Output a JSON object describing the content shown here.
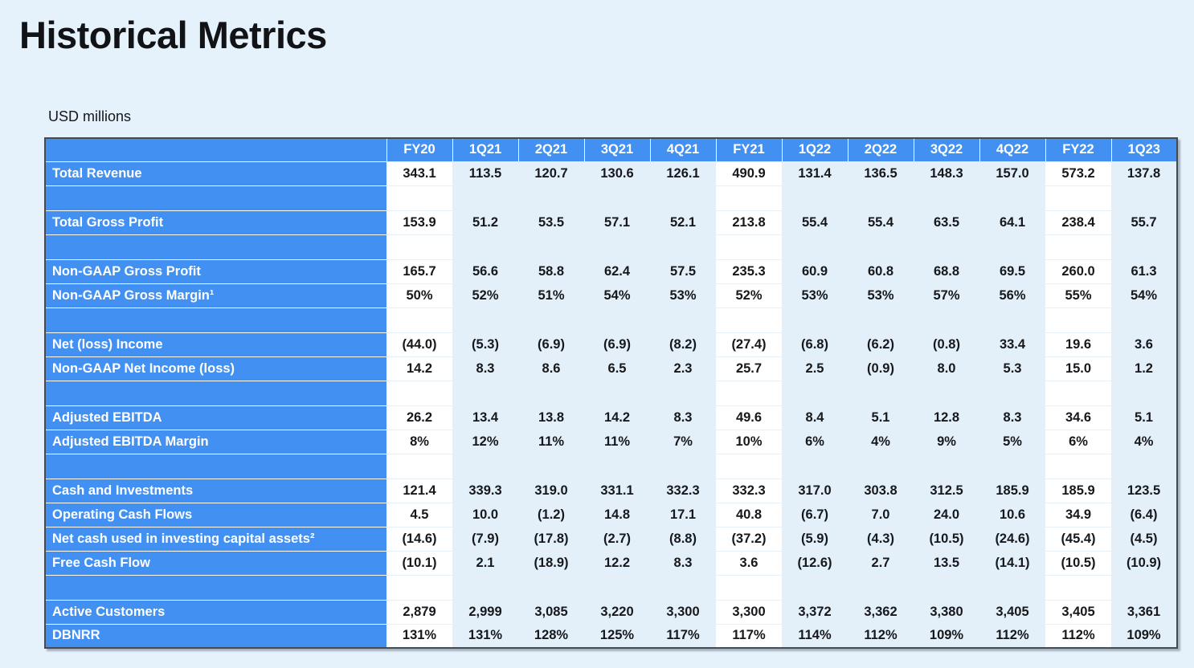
{
  "page": {
    "title": "Historical Metrics",
    "subtitle": "USD millions"
  },
  "colors": {
    "page_background": "#e6f2fb",
    "header_blue": "#4291f2",
    "column_tint": "#e3f0fa",
    "table_border": "#424c56",
    "value_text": "#17181b",
    "header_text": "#ffffff"
  },
  "table": {
    "columns": [
      {
        "label": "FY20",
        "tint": false
      },
      {
        "label": "1Q21",
        "tint": true
      },
      {
        "label": "2Q21",
        "tint": true
      },
      {
        "label": "3Q21",
        "tint": true
      },
      {
        "label": "4Q21",
        "tint": true
      },
      {
        "label": "FY21",
        "tint": false
      },
      {
        "label": "1Q22",
        "tint": true
      },
      {
        "label": "2Q22",
        "tint": true
      },
      {
        "label": "3Q22",
        "tint": true
      },
      {
        "label": "4Q22",
        "tint": true
      },
      {
        "label": "FY22",
        "tint": false
      },
      {
        "label": "1Q23",
        "tint": true
      }
    ],
    "rows": [
      {
        "label": "Total Revenue",
        "spacer_after": true,
        "values": [
          "343.1",
          "113.5",
          "120.7",
          "130.6",
          "126.1",
          "490.9",
          "131.4",
          "136.5",
          "148.3",
          "157.0",
          "573.2",
          "137.8"
        ]
      },
      {
        "label": "Total Gross Profit",
        "spacer_after": true,
        "values": [
          "153.9",
          "51.2",
          "53.5",
          "57.1",
          "52.1",
          "213.8",
          "55.4",
          "55.4",
          "63.5",
          "64.1",
          "238.4",
          "55.7"
        ]
      },
      {
        "label": "Non-GAAP Gross Profit",
        "spacer_after": false,
        "values": [
          "165.7",
          "56.6",
          "58.8",
          "62.4",
          "57.5",
          "235.3",
          "60.9",
          "60.8",
          "68.8",
          "69.5",
          "260.0",
          "61.3"
        ]
      },
      {
        "label": "Non-GAAP Gross Margin¹",
        "spacer_after": true,
        "values": [
          "50%",
          "52%",
          "51%",
          "54%",
          "53%",
          "52%",
          "53%",
          "53%",
          "57%",
          "56%",
          "55%",
          "54%"
        ]
      },
      {
        "label": "Net (loss) Income",
        "spacer_after": false,
        "values": [
          "(44.0)",
          "(5.3)",
          "(6.9)",
          "(6.9)",
          "(8.2)",
          "(27.4)",
          "(6.8)",
          "(6.2)",
          "(0.8)",
          "33.4",
          "19.6",
          "3.6"
        ]
      },
      {
        "label": "Non-GAAP Net Income (loss)",
        "spacer_after": true,
        "values": [
          "14.2",
          "8.3",
          "8.6",
          "6.5",
          "2.3",
          "25.7",
          "2.5",
          "(0.9)",
          "8.0",
          "5.3",
          "15.0",
          "1.2"
        ]
      },
      {
        "label": "Adjusted EBITDA",
        "spacer_after": false,
        "values": [
          "26.2",
          "13.4",
          "13.8",
          "14.2",
          "8.3",
          "49.6",
          "8.4",
          "5.1",
          "12.8",
          "8.3",
          "34.6",
          "5.1"
        ]
      },
      {
        "label": "Adjusted EBITDA Margin",
        "spacer_after": true,
        "values": [
          "8%",
          "12%",
          "11%",
          "11%",
          "7%",
          "10%",
          "6%",
          "4%",
          "9%",
          "5%",
          "6%",
          "4%"
        ]
      },
      {
        "label": "Cash and Investments",
        "spacer_after": false,
        "values": [
          "121.4",
          "339.3",
          "319.0",
          "331.1",
          "332.3",
          "332.3",
          "317.0",
          "303.8",
          "312.5",
          "185.9",
          "185.9",
          "123.5"
        ]
      },
      {
        "label": "Operating Cash Flows",
        "spacer_after": false,
        "values": [
          "4.5",
          "10.0",
          "(1.2)",
          "14.8",
          "17.1",
          "40.8",
          "(6.7)",
          "7.0",
          "24.0",
          "10.6",
          "34.9",
          "(6.4)"
        ]
      },
      {
        "label": "Net cash used in investing capital assets²",
        "spacer_after": false,
        "values": [
          "(14.6)",
          "(7.9)",
          "(17.8)",
          "(2.7)",
          "(8.8)",
          "(37.2)",
          "(5.9)",
          "(4.3)",
          "(10.5)",
          "(24.6)",
          "(45.4)",
          "(4.5)"
        ]
      },
      {
        "label": "Free Cash Flow",
        "spacer_after": true,
        "values": [
          "(10.1)",
          "2.1",
          "(18.9)",
          "12.2",
          "8.3",
          "3.6",
          "(12.6)",
          "2.7",
          "13.5",
          "(14.1)",
          "(10.5)",
          "(10.9)"
        ]
      },
      {
        "label": "Active Customers",
        "spacer_after": false,
        "values": [
          "2,879",
          "2,999",
          "3,085",
          "3,220",
          "3,300",
          "3,300",
          "3,372",
          "3,362",
          "3,380",
          "3,405",
          "3,405",
          "3,361"
        ]
      },
      {
        "label": "DBNRR",
        "spacer_after": false,
        "values": [
          "131%",
          "131%",
          "128%",
          "125%",
          "117%",
          "117%",
          "114%",
          "112%",
          "109%",
          "112%",
          "112%",
          "109%"
        ]
      }
    ]
  }
}
